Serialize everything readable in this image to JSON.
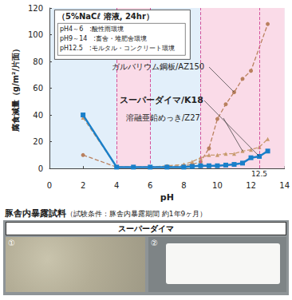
{
  "chart_data": {
    "type": "line",
    "title": "（5%NaCℓ 溶液, 24hr）",
    "notes": [
      "pH4～6　:酸性雨環境",
      "pH9～14　:畜舎・堆肥舎環境",
      "pH12.5　:モルタル・コンクリート環境"
    ],
    "x_label": "pH",
    "y_label": "腐食減量（g/m²/片面）",
    "xlim": [
      0,
      14
    ],
    "xticks": [
      0,
      2,
      4,
      6,
      8,
      10,
      12,
      14
    ],
    "ylim": [
      0,
      120
    ],
    "yticks": [
      0,
      20,
      40,
      60,
      80,
      100,
      120
    ],
    "grid": false,
    "bands": [
      [
        4,
        6
      ],
      [
        9,
        14
      ]
    ],
    "ref_lines": [
      {
        "x": 4
      },
      {
        "x": 6
      },
      {
        "x": 9
      },
      {
        "x": 12.5,
        "label": "12.5"
      }
    ],
    "series": [
      {
        "name": "ガルバリウム鋼板/AZ150",
        "color": "#b9805e",
        "line_style": "dashed",
        "marker": "circle",
        "x": [
          2,
          4,
          5,
          6,
          7,
          8,
          8.5,
          9,
          9.5,
          10,
          10.5,
          11,
          11.5,
          12,
          13
        ],
        "values": [
          10,
          1,
          1,
          1,
          1.5,
          2,
          3,
          5,
          15,
          37,
          48,
          57,
          67,
          73,
          108
        ]
      },
      {
        "name": "スーパーダイマ/K18",
        "color": "#1a7fc9",
        "line_style": "solid",
        "marker": "square",
        "x": [
          2,
          4,
          5,
          6,
          7,
          8,
          8.5,
          9,
          9.5,
          10,
          10.5,
          11,
          11.5,
          12,
          12.5,
          13
        ],
        "values": [
          40,
          1,
          1,
          1,
          1,
          1,
          1.5,
          2,
          2,
          2,
          2.5,
          3,
          4,
          8,
          9,
          13
        ]
      },
      {
        "name": "溶融亜鉛めっき/Z27",
        "color": "#c89a6e",
        "line_style": "dashed",
        "marker": "triangle",
        "x": [
          2,
          4,
          5,
          6,
          7,
          8,
          8.5,
          9,
          9.5,
          10,
          10.5,
          11,
          11.5,
          12,
          12.5,
          13
        ],
        "values": [
          38,
          1,
          1,
          1,
          2,
          3,
          5,
          8,
          10,
          10,
          11,
          11,
          13,
          14,
          16,
          22
        ]
      }
    ]
  },
  "photo_panel": {
    "title": "豚舎内暴露試料",
    "subtitle": "（試験条件：豚舎内暴露期間 約1年9ヶ月）",
    "header": "スーパーダイマ",
    "photos": [
      "①",
      "②"
    ]
  }
}
